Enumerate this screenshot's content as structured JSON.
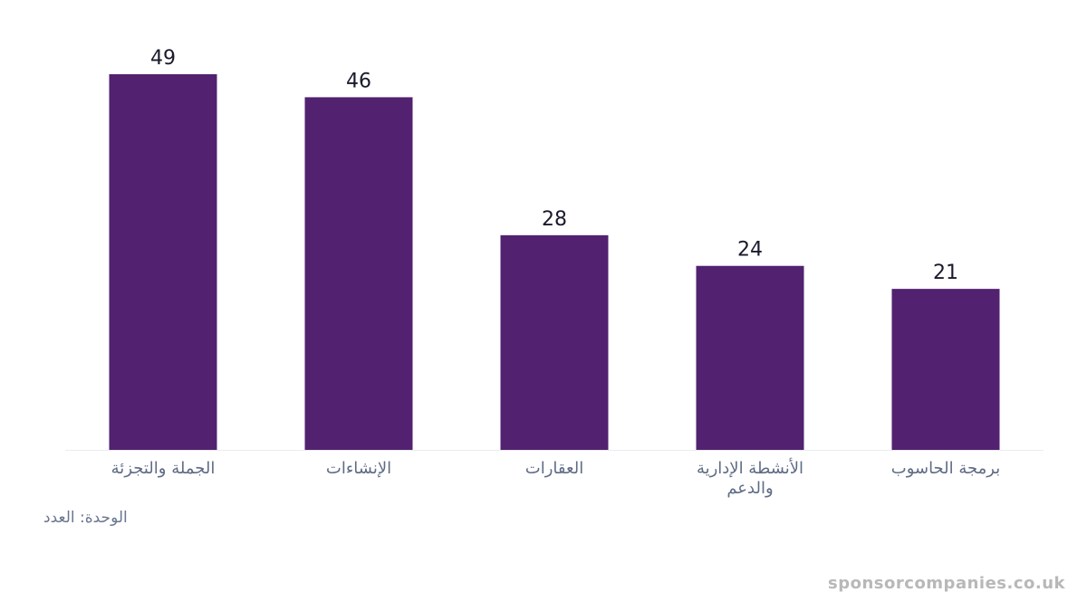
{
  "chart_data": {
    "type": "bar",
    "categories": [
      [
        "الجملة والتجزئة"
      ],
      [
        "الإنشاءات"
      ],
      [
        "العقارات"
      ],
      [
        "الأنشطة الإدارية",
        "والدعم"
      ],
      [
        "برمجة الحاسوب"
      ]
    ],
    "values": [
      49,
      46,
      28,
      24,
      21
    ],
    "ylim": [
      0,
      49
    ],
    "grid": false,
    "legend": "none",
    "bar_color": "#52216f",
    "baseline_color": "#e8ecf2"
  },
  "unit_label": "الوحدة: العدد",
  "watermark": "sponsorcompanies.co.uk"
}
